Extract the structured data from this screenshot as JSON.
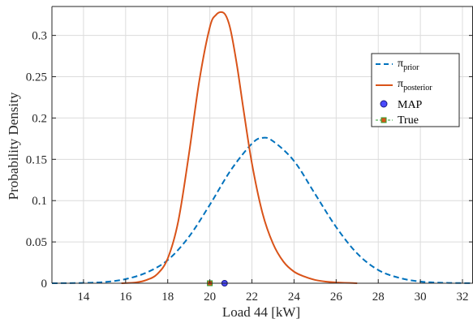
{
  "chart_data": {
    "type": "line",
    "xlabel": "Load 44 [kW]",
    "ylabel": "Probability Density",
    "xlim": [
      12.5,
      32.5
    ],
    "ylim": [
      0,
      0.335
    ],
    "x_ticks": [
      14,
      16,
      18,
      20,
      22,
      24,
      26,
      28,
      30,
      32
    ],
    "y_ticks": [
      0,
      0.05,
      0.1,
      0.15,
      0.2,
      0.25,
      0.3
    ],
    "y_tick_labels": [
      "0",
      "0.05",
      "0.1",
      "0.15",
      "0.2",
      "0.25",
      "0.3"
    ],
    "grid": true,
    "legend_position": "right",
    "series": [
      {
        "name": "π",
        "name_subscript": "prior",
        "style": "dashed",
        "color": "#0072BD",
        "x": [
          12.5,
          13,
          14,
          15,
          16,
          17,
          18,
          19,
          20,
          21,
          22,
          22.5,
          23,
          24,
          25,
          26,
          27,
          28,
          29,
          30,
          31,
          32,
          32.5
        ],
        "y": [
          0.0,
          0.0001,
          0.0004,
          0.0015,
          0.005,
          0.013,
          0.028,
          0.056,
          0.095,
          0.137,
          0.169,
          0.176,
          0.172,
          0.148,
          0.108,
          0.068,
          0.036,
          0.016,
          0.0065,
          0.002,
          0.0006,
          0.0002,
          0.0001
        ]
      },
      {
        "name": "π",
        "name_subscript": "posterior",
        "style": "solid",
        "color": "#D95319",
        "x": [
          15.8,
          16.5,
          17,
          17.5,
          18,
          18.5,
          19,
          19.5,
          20,
          20.3,
          20.6,
          20.8,
          21,
          21.3,
          21.6,
          22,
          22.5,
          23,
          23.5,
          24,
          24.5,
          25,
          25.5,
          26,
          27
        ],
        "y": [
          0.0,
          0.001,
          0.004,
          0.011,
          0.03,
          0.075,
          0.155,
          0.245,
          0.31,
          0.325,
          0.328,
          0.322,
          0.305,
          0.262,
          0.21,
          0.145,
          0.085,
          0.048,
          0.026,
          0.014,
          0.008,
          0.004,
          0.002,
          0.001,
          0.0
        ]
      }
    ],
    "markers": [
      {
        "name": "MAP",
        "x": 20.7,
        "y": 0,
        "shape": "circle",
        "fill": "#4a4aff",
        "edge": "#1a1a80"
      },
      {
        "name": "True",
        "x": 20.0,
        "y": 0,
        "shape": "square",
        "fill": "#d95319",
        "edge": "#2ca02c"
      }
    ]
  }
}
